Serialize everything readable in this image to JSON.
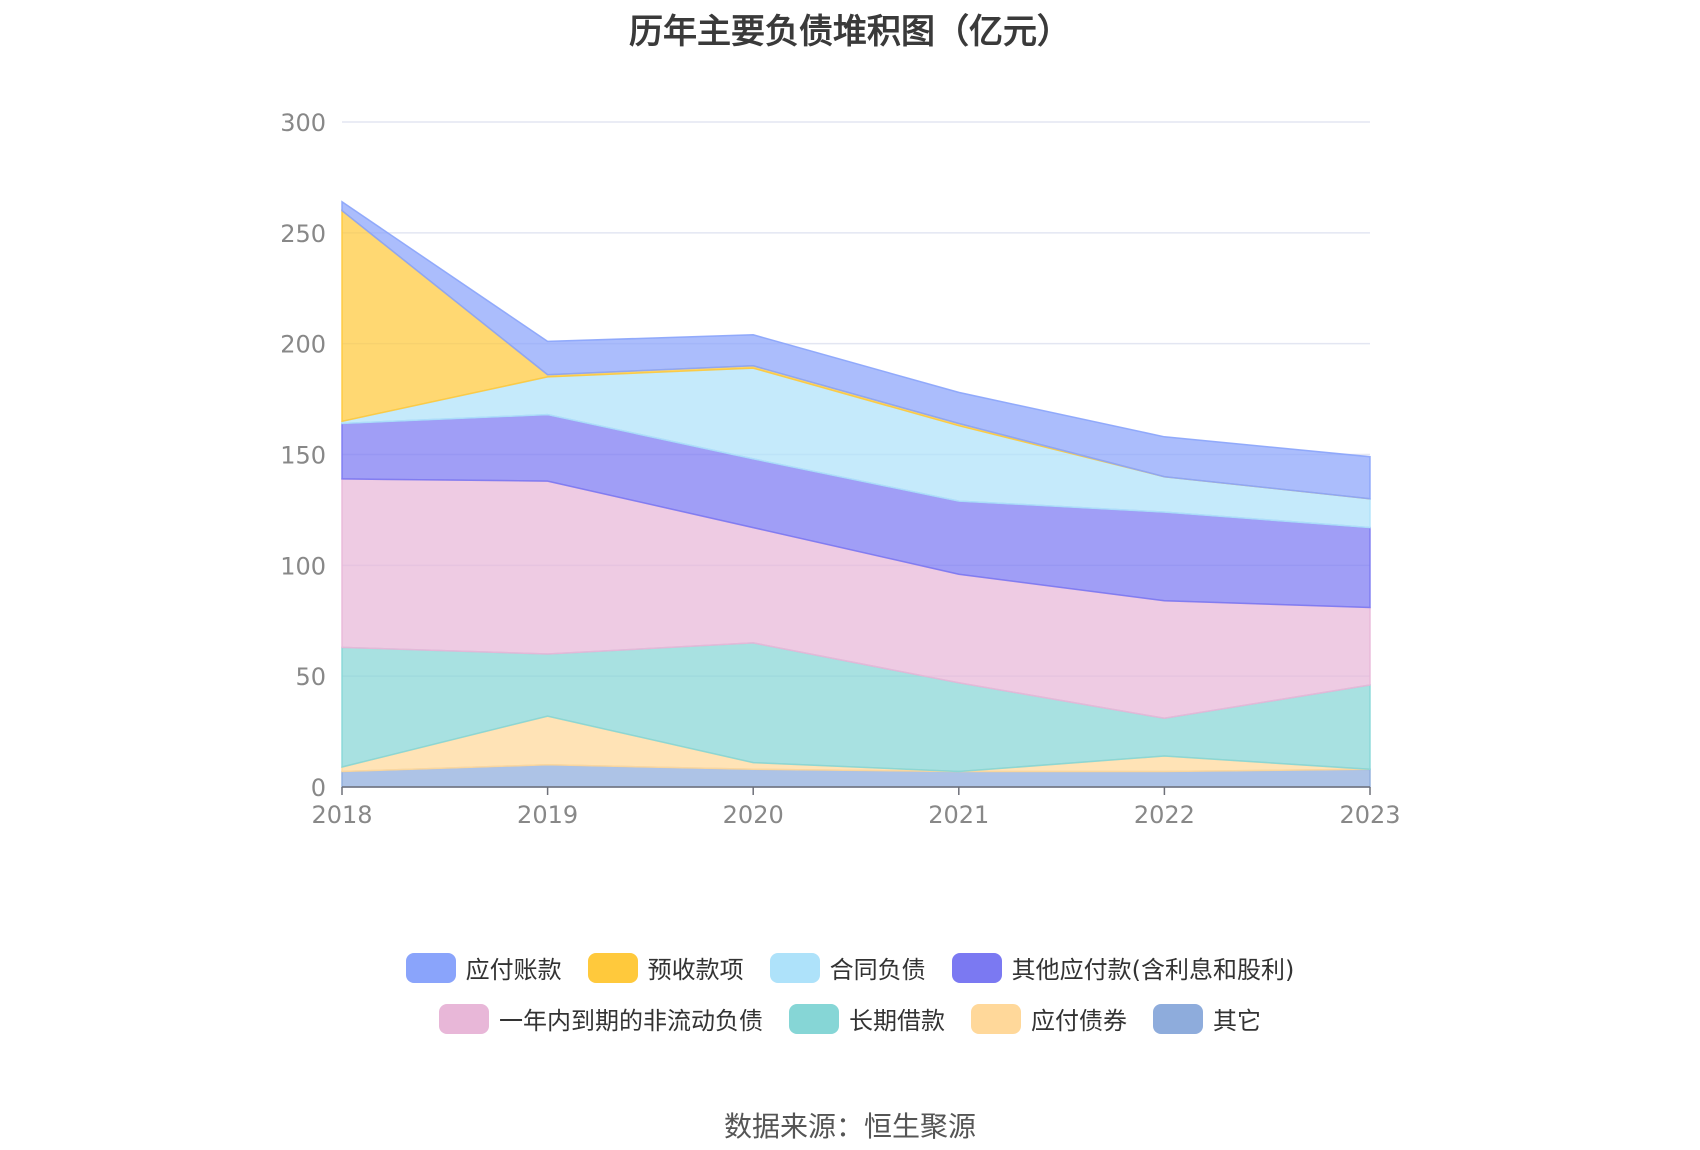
{
  "title": "历年主要负债堆积图（亿元）",
  "source": "数据来源：恒生聚源",
  "chart_data": {
    "type": "area",
    "stacked": true,
    "x": [
      "2018",
      "2019",
      "2020",
      "2021",
      "2022",
      "2023"
    ],
    "ylim": [
      0,
      300
    ],
    "yticks": [
      "0",
      "50",
      "100",
      "150",
      "200",
      "250",
      "300"
    ],
    "grid": true,
    "legend_position": "bottom",
    "series": [
      {
        "name": "其它",
        "color": "#8eacdc",
        "values": [
          7,
          10,
          8,
          7,
          7,
          8
        ]
      },
      {
        "name": "应付债券",
        "color": "#ffd89a",
        "values": [
          2,
          22,
          3,
          0,
          7,
          0
        ]
      },
      {
        "name": "长期借款",
        "color": "#86d6d6",
        "values": [
          54,
          28,
          54,
          40,
          17,
          38
        ]
      },
      {
        "name": "一年内到期的非流动负债",
        "color": "#e8b7d8",
        "values": [
          76,
          78,
          52,
          49,
          53,
          35
        ]
      },
      {
        "name": "其他应付款(含利息和股利)",
        "color": "#7b79f2",
        "values": [
          25,
          30,
          31,
          33,
          40,
          36
        ]
      },
      {
        "name": "合同负债",
        "color": "#aee2fa",
        "values": [
          1,
          17,
          41,
          34,
          16,
          13
        ]
      },
      {
        "name": "预收款项",
        "color": "#ffc93c",
        "values": [
          95,
          1,
          1,
          1,
          0,
          0
        ]
      },
      {
        "name": "应付账款",
        "color": "#8aa4fb",
        "values": [
          4,
          15,
          14,
          14,
          18,
          19
        ]
      }
    ],
    "legend_rows": [
      [
        "应付账款",
        "预收款项",
        "合同负债",
        "其他应付款(含利息和股利)"
      ],
      [
        "一年内到期的非流动负债",
        "长期借款",
        "应付债券",
        "其它"
      ]
    ]
  }
}
